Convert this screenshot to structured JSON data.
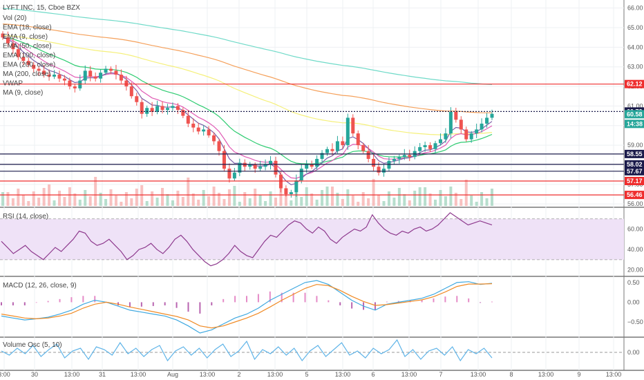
{
  "symbol": "LYFT INC, 15, Cboe BZX",
  "legend": [
    "Vol (20)",
    "EMA (18, close)",
    "EMA (9, close)",
    "EMA (50, close)",
    "EMA (100, close)",
    "EMA (200, close)",
    "MA (200, close)",
    "VWAP",
    "MA (9, close)"
  ],
  "panes": {
    "rsi": "RSI (14, close)",
    "macd": "MACD (12, 26, close, 9)",
    "vosc": "Volume Osc (5, 10)"
  },
  "colors": {
    "up": "#26a69a",
    "down": "#ef5350",
    "ema9": "#7b5ea7",
    "ema18": "#e05bb5",
    "ema50": "#2ecc71",
    "ema100": "#f5f07a",
    "ema200": "#f5a05a",
    "ma200": "#6fdac8",
    "rsi": "#8e3a8e",
    "macd": "#3ea8e0",
    "signal": "#f08a24",
    "hline": "#1a1a4a",
    "redline": "#ef2d2d"
  },
  "chart_data": [
    {
      "type": "candlestick",
      "ylim": [
        55.9,
        66.2
      ],
      "y_ticks": [
        "66.00",
        "65.00",
        "64.00",
        "63.00",
        "62.00",
        "61.00",
        "60.00",
        "59.00",
        "58.00",
        "57.00",
        "56.00"
      ],
      "x_labels": [
        "3:00",
        "30",
        "13:00",
        "31",
        "13:00",
        "Aug",
        "13:00",
        "2",
        "13:00",
        "5",
        "13:00",
        "6",
        "13:00",
        "7",
        "13:00",
        "8",
        "13:00",
        "9",
        "13:00"
      ],
      "closes": [
        64.5,
        64.2,
        63.9,
        63.5,
        63.3,
        63.1,
        62.9,
        62.8,
        62.6,
        62.5,
        62.6,
        62.4,
        62.3,
        62.0,
        61.9,
        62.3,
        62.8,
        62.5,
        62.4,
        62.7,
        62.9,
        62.8,
        62.6,
        62.3,
        62.0,
        61.5,
        61.2,
        60.6,
        60.9,
        60.7,
        61.0,
        60.8,
        60.9,
        61.0,
        60.8,
        60.5,
        60.1,
        59.9,
        59.7,
        59.8,
        59.5,
        59.2,
        58.7,
        57.8,
        57.3,
        57.6,
        58.1,
        57.9,
        58.0,
        57.8,
        57.9,
        58.0,
        58.2,
        57.5,
        56.8,
        56.5,
        56.6,
        57.2,
        57.8,
        58.0,
        57.9,
        58.3,
        58.6,
        58.8,
        58.7,
        59.2,
        59.0,
        60.4,
        59.6,
        59.0,
        58.7,
        58.3,
        57.9,
        57.6,
        57.8,
        58.2,
        58.3,
        58.4,
        58.5,
        58.4,
        58.7,
        58.9,
        59.0,
        58.8,
        59.1,
        59.3,
        59.6,
        60.7,
        60.3,
        59.8,
        59.3,
        59.6,
        59.8,
        60.1,
        60.4,
        60.6
      ],
      "highlighted_prices": [
        62.12,
        60.72,
        60.58,
        58.55,
        58.02,
        57.67,
        57.17,
        56.46
      ],
      "countdown": "14:38"
    },
    {
      "type": "line",
      "title": "RSI (14, close)",
      "ylim": [
        15,
        80
      ],
      "y_ticks": [
        "60.00",
        "40.00",
        "20.00"
      ],
      "values": [
        48,
        42,
        36,
        40,
        44,
        38,
        34,
        30,
        36,
        42,
        38,
        44,
        50,
        58,
        56,
        48,
        44,
        46,
        50,
        44,
        38,
        30,
        34,
        40,
        42,
        46,
        40,
        36,
        42,
        50,
        54,
        48,
        40,
        34,
        28,
        24,
        26,
        30,
        36,
        44,
        38,
        34,
        32,
        40,
        48,
        54,
        52,
        58,
        64,
        68,
        66,
        60,
        56,
        62,
        58,
        50,
        46,
        52,
        56,
        60,
        58,
        62,
        74,
        66,
        60,
        56,
        54,
        58,
        56,
        60,
        62,
        58,
        60,
        64,
        70,
        76,
        72,
        68,
        64,
        66,
        68,
        66,
        64
      ],
      "band": [
        30,
        70
      ]
    },
    {
      "type": "line",
      "title": "MACD (12, 26, close, 9)",
      "ylim": [
        -0.85,
        0.62
      ],
      "y_ticks": [
        "0.50",
        "0.00",
        "−0.50"
      ],
      "series": [
        {
          "values": [
            -0.35,
            -0.4,
            -0.45,
            -0.42,
            -0.38,
            -0.3,
            -0.2,
            -0.05,
            0.05,
            0.0,
            -0.1,
            -0.2,
            -0.25,
            -0.3,
            -0.35,
            -0.45,
            -0.6,
            -0.78,
            -0.7,
            -0.55,
            -0.4,
            -0.3,
            -0.15,
            0.05,
            0.2,
            0.35,
            0.5,
            0.55,
            0.45,
            0.25,
            0.05,
            -0.1,
            -0.2,
            -0.05,
            0.0,
            0.05,
            0.1,
            0.2,
            0.35,
            0.5,
            0.52,
            0.45,
            0.48
          ]
        },
        {
          "values": [
            -0.3,
            -0.35,
            -0.4,
            -0.42,
            -0.4,
            -0.35,
            -0.28,
            -0.15,
            -0.05,
            0.0,
            -0.05,
            -0.12,
            -0.18,
            -0.24,
            -0.3,
            -0.36,
            -0.45,
            -0.6,
            -0.65,
            -0.6,
            -0.5,
            -0.4,
            -0.28,
            -0.12,
            0.05,
            0.2,
            0.35,
            0.45,
            0.42,
            0.3,
            0.15,
            0.02,
            -0.08,
            -0.06,
            -0.02,
            0.02,
            0.06,
            0.14,
            0.26,
            0.4,
            0.46,
            0.46,
            0.47
          ]
        }
      ]
    },
    {
      "type": "line",
      "title": "Volume Osc (5, 10)",
      "ylim": [
        -1,
        1
      ],
      "y_ticks": [
        "0.00"
      ],
      "values": [
        0.1,
        -0.2,
        0.3,
        -0.1,
        0.5,
        -0.3,
        0.2,
        0.6,
        -0.4,
        0.1,
        0.3,
        -0.5,
        0.4,
        0.2,
        -0.2,
        0.7,
        -0.1,
        0.3,
        -0.3,
        0.2,
        0.5,
        -0.6,
        0.1,
        0.4,
        -0.2,
        0.3,
        -0.4,
        0.2,
        0.6,
        -0.3,
        0.1,
        0.8,
        -0.5,
        0.2,
        -0.1,
        0.4,
        -0.2,
        0.3,
        -0.6,
        0.1,
        0.5,
        -0.3,
        0.2,
        0.7,
        -0.2,
        0.1,
        -0.4,
        0.3,
        -0.1,
        0.2,
        0.9,
        -0.3,
        0.2,
        -0.5,
        0.1,
        0.3,
        -0.2,
        0.4,
        -0.6,
        0.2,
        -0.1,
        0.3,
        -0.4
      ]
    }
  ]
}
